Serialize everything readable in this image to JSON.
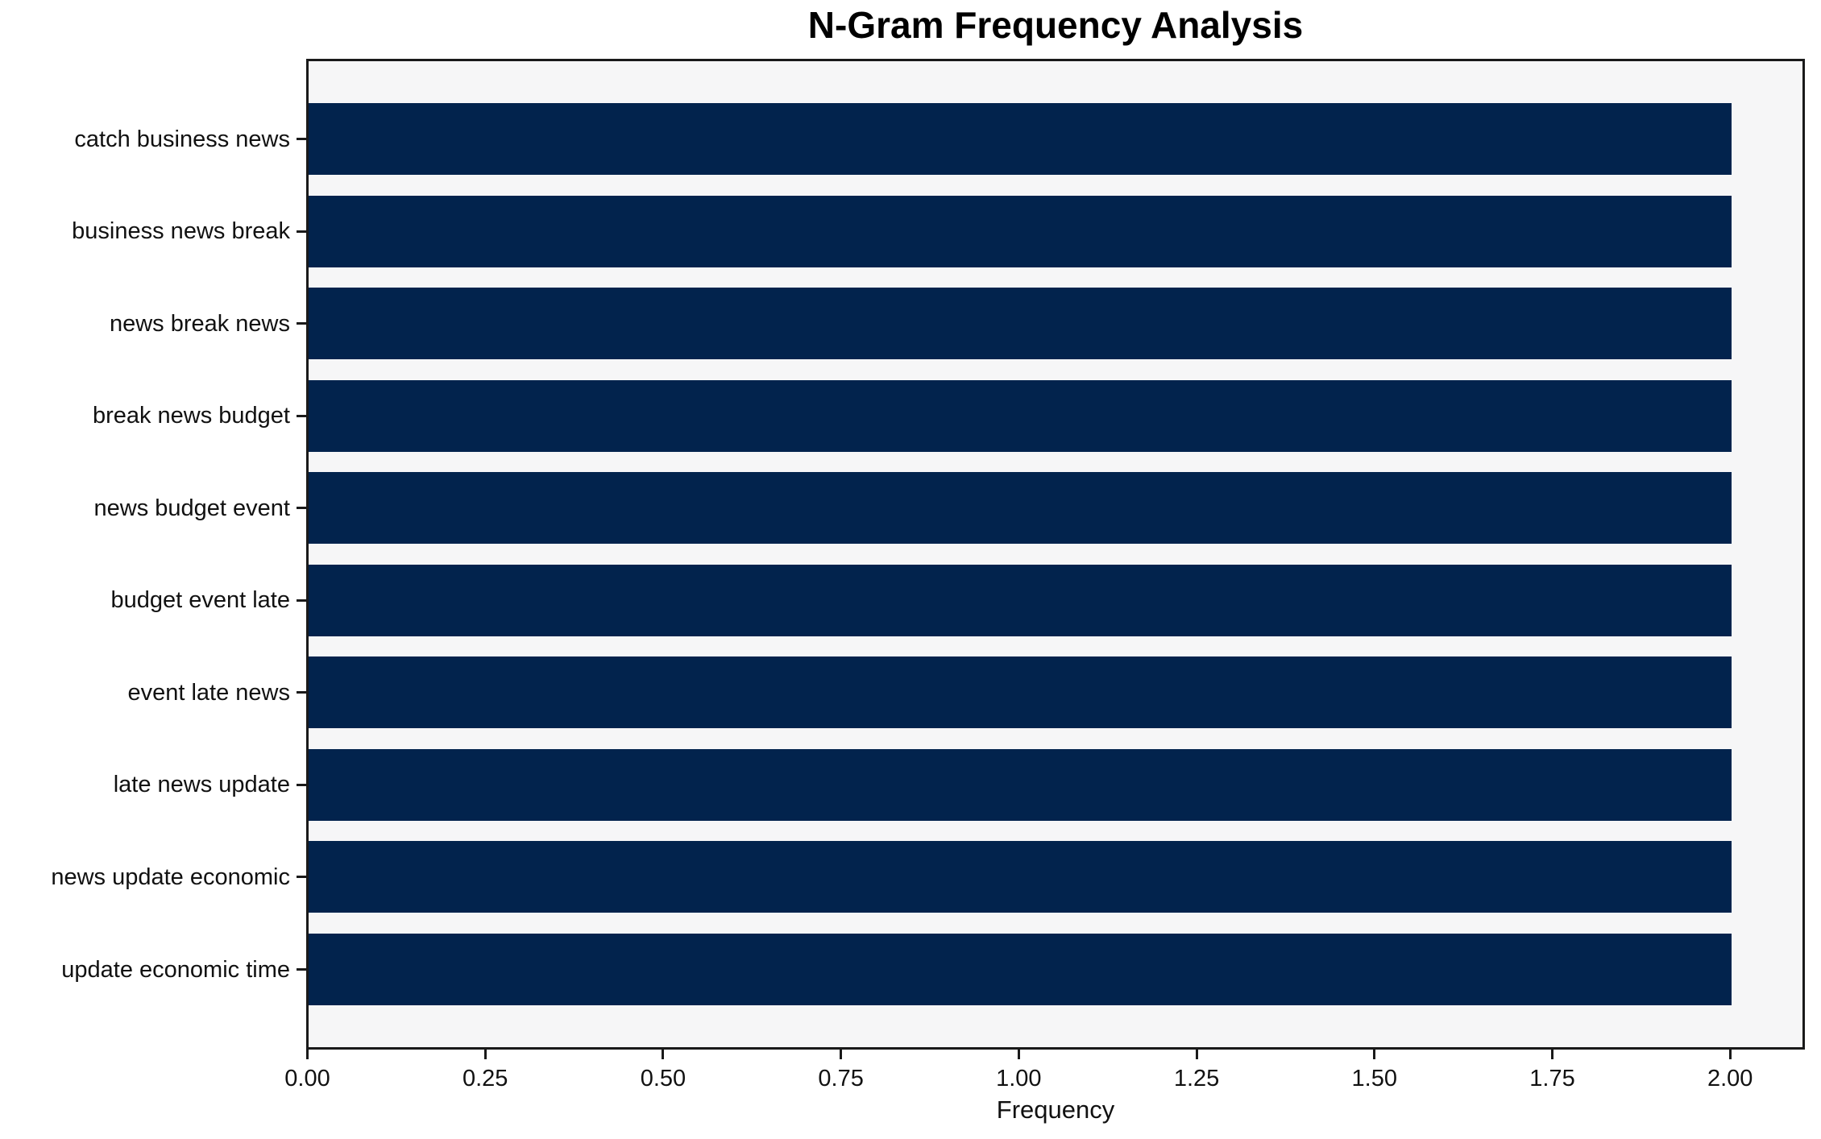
{
  "chart_data": {
    "type": "bar",
    "orientation": "horizontal",
    "title": "N-Gram Frequency Analysis",
    "xlabel": "Frequency",
    "ylabel": "",
    "categories": [
      "catch business news",
      "business news break",
      "news break news",
      "break news budget",
      "news budget event",
      "budget event late",
      "event late news",
      "late news update",
      "news update economic",
      "update economic time"
    ],
    "values": [
      2,
      2,
      2,
      2,
      2,
      2,
      2,
      2,
      2,
      2
    ],
    "xlim": [
      0,
      2.1
    ],
    "xticks": [
      {
        "value": 0.0,
        "label": "0.00"
      },
      {
        "value": 0.25,
        "label": "0.25"
      },
      {
        "value": 0.5,
        "label": "0.50"
      },
      {
        "value": 0.75,
        "label": "0.75"
      },
      {
        "value": 1.0,
        "label": "1.00"
      },
      {
        "value": 1.25,
        "label": "1.25"
      },
      {
        "value": 1.5,
        "label": "1.50"
      },
      {
        "value": 1.75,
        "label": "1.75"
      },
      {
        "value": 2.0,
        "label": "2.00"
      }
    ],
    "grid": false,
    "legend": "none",
    "colors": {
      "bar": "#02234d",
      "plot_bg": "#f6f6f7",
      "figure_bg": "#ffffff",
      "spine": "#1a1a1a",
      "text": "#111111"
    }
  }
}
